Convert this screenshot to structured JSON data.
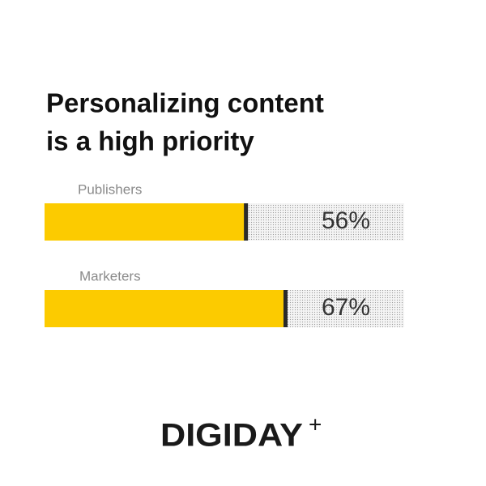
{
  "chart_data": {
    "type": "bar",
    "orientation": "horizontal",
    "title": [
      "Personalizing content",
      "is a high priority"
    ],
    "categories": [
      "Publishers",
      "Marketers"
    ],
    "values": [
      56,
      67
    ],
    "value_labels": [
      "56%",
      "67%"
    ],
    "color": "#fccb00",
    "xlim": [
      0,
      100
    ]
  },
  "brand": {
    "name": "DIGIDAY",
    "mark": "+"
  }
}
